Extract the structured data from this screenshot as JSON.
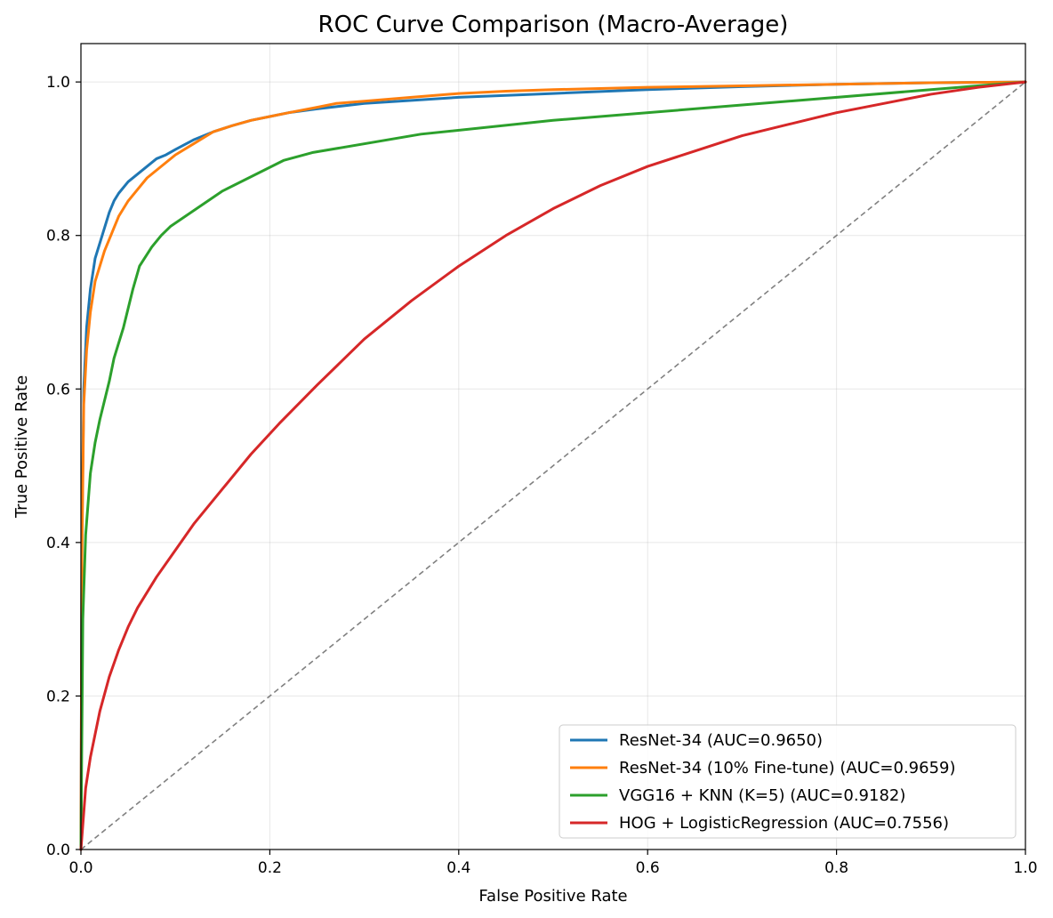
{
  "chart_data": {
    "type": "line",
    "title": "ROC Curve Comparison (Macro-Average)",
    "xlabel": "False Positive Rate",
    "ylabel": "True Positive Rate",
    "xlim": [
      0.0,
      1.0
    ],
    "ylim": [
      0.0,
      1.05
    ],
    "xticks": [
      0.0,
      0.2,
      0.4,
      0.6,
      0.8,
      1.0
    ],
    "yticks": [
      0.0,
      0.2,
      0.4,
      0.6,
      0.8,
      1.0
    ],
    "xtick_labels": [
      "0.0",
      "0.2",
      "0.4",
      "0.6",
      "0.8",
      "1.0"
    ],
    "ytick_labels": [
      "0.0",
      "0.2",
      "0.4",
      "0.6",
      "0.8",
      "1.0"
    ],
    "grid": true,
    "legend_position": "bottom-right",
    "diagonal": {
      "x": [
        0.0,
        1.0
      ],
      "y": [
        0.0,
        1.0
      ],
      "color": "#808080",
      "style": "dashed"
    },
    "series": [
      {
        "name": "ResNet-34 (AUC=0.9650)",
        "color": "#1f77b4",
        "x": [
          0.0,
          0.001,
          0.003,
          0.006,
          0.01,
          0.015,
          0.02,
          0.025,
          0.03,
          0.035,
          0.04,
          0.05,
          0.06,
          0.07,
          0.08,
          0.09,
          0.1,
          0.12,
          0.14,
          0.16,
          0.18,
          0.2,
          0.22,
          0.25,
          0.3,
          0.35,
          0.4,
          0.5,
          0.6,
          0.7,
          0.8,
          0.9,
          1.0
        ],
        "y": [
          0.0,
          0.4,
          0.6,
          0.68,
          0.73,
          0.77,
          0.79,
          0.81,
          0.83,
          0.845,
          0.855,
          0.87,
          0.88,
          0.89,
          0.9,
          0.905,
          0.912,
          0.925,
          0.935,
          0.943,
          0.95,
          0.955,
          0.96,
          0.965,
          0.972,
          0.976,
          0.98,
          0.985,
          0.99,
          0.994,
          0.997,
          0.999,
          1.0
        ]
      },
      {
        "name": "ResNet-34 (10% Fine-tune) (AUC=0.9659)",
        "color": "#ff7f0e",
        "x": [
          0.0,
          0.001,
          0.003,
          0.006,
          0.01,
          0.015,
          0.02,
          0.025,
          0.03,
          0.035,
          0.04,
          0.05,
          0.06,
          0.07,
          0.08,
          0.09,
          0.1,
          0.12,
          0.14,
          0.16,
          0.18,
          0.2,
          0.22,
          0.25,
          0.27,
          0.3,
          0.35,
          0.4,
          0.45,
          0.5,
          0.6,
          0.7,
          0.8,
          0.9,
          1.0
        ],
        "y": [
          0.0,
          0.38,
          0.58,
          0.65,
          0.7,
          0.74,
          0.76,
          0.78,
          0.795,
          0.81,
          0.825,
          0.845,
          0.86,
          0.875,
          0.885,
          0.895,
          0.905,
          0.92,
          0.935,
          0.943,
          0.95,
          0.955,
          0.96,
          0.967,
          0.972,
          0.975,
          0.98,
          0.985,
          0.988,
          0.99,
          0.993,
          0.995,
          0.997,
          0.999,
          1.0
        ]
      },
      {
        "name": "VGG16 + KNN  (K=5) (AUC=0.9182)",
        "color": "#2ca02c",
        "x": [
          0.0,
          0.002,
          0.005,
          0.01,
          0.015,
          0.02,
          0.03,
          0.035,
          0.045,
          0.055,
          0.062,
          0.075,
          0.085,
          0.095,
          0.15,
          0.215,
          0.245,
          0.36,
          0.5,
          1.0
        ],
        "y": [
          0.0,
          0.3,
          0.41,
          0.49,
          0.53,
          0.56,
          0.61,
          0.64,
          0.68,
          0.73,
          0.76,
          0.785,
          0.8,
          0.812,
          0.858,
          0.898,
          0.908,
          0.932,
          0.95,
          1.0
        ]
      },
      {
        "name": "HOG + LogisticRegression (AUC=0.7556)",
        "color": "#d62728",
        "x": [
          0.0,
          0.005,
          0.01,
          0.02,
          0.03,
          0.04,
          0.05,
          0.06,
          0.08,
          0.1,
          0.12,
          0.15,
          0.18,
          0.21,
          0.25,
          0.3,
          0.35,
          0.4,
          0.45,
          0.5,
          0.55,
          0.6,
          0.65,
          0.7,
          0.75,
          0.8,
          0.85,
          0.9,
          0.95,
          1.0
        ],
        "y": [
          0.0,
          0.08,
          0.12,
          0.18,
          0.225,
          0.26,
          0.29,
          0.315,
          0.355,
          0.39,
          0.425,
          0.47,
          0.515,
          0.555,
          0.605,
          0.665,
          0.715,
          0.76,
          0.8,
          0.835,
          0.865,
          0.89,
          0.91,
          0.93,
          0.945,
          0.96,
          0.972,
          0.984,
          0.993,
          1.0
        ]
      }
    ]
  }
}
